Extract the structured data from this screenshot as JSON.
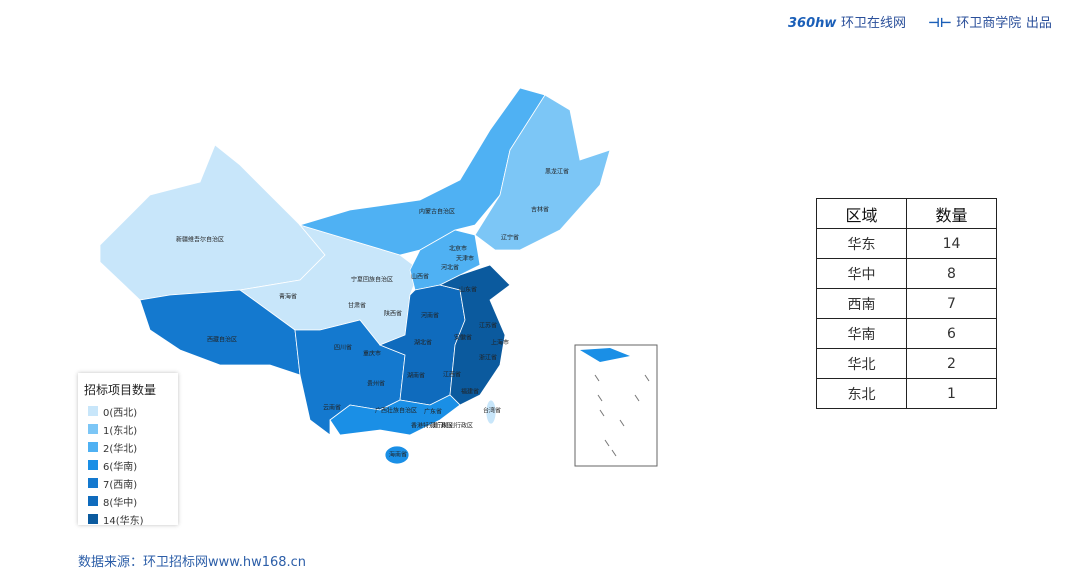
{
  "header": {
    "logo1_mark": "360hw",
    "logo1_text": "环卫在线网",
    "logo2_text": "环卫商学院",
    "credit": "出品"
  },
  "legend": {
    "title": "招标项目数量",
    "items": [
      {
        "label": "0(西北)",
        "color": "#c8e6fa"
      },
      {
        "label": "1(东北)",
        "color": "#7cc6f6"
      },
      {
        "label": "2(华北)",
        "color": "#4fb1f3"
      },
      {
        "label": "6(华南)",
        "color": "#1a8fe6"
      },
      {
        "label": "7(西南)",
        "color": "#1479cf"
      },
      {
        "label": "8(华中)",
        "color": "#0f6bbd"
      },
      {
        "label": "14(华东)",
        "color": "#0b5a9e"
      }
    ]
  },
  "provinces": [
    "新疆维吾尔自治区",
    "青海省",
    "甘肃省",
    "宁夏回族自治区",
    "陕西省",
    "内蒙古自治区",
    "黑龙江省",
    "吉林省",
    "辽宁省",
    "北京市",
    "天津市",
    "河北省",
    "山西省",
    "山东省",
    "河南省",
    "江苏省",
    "安徽省",
    "上海市",
    "湖北省",
    "浙江省",
    "重庆市",
    "四川省",
    "西藏自治区",
    "贵州省",
    "湖南省",
    "江西省",
    "福建省",
    "云南省",
    "广西壮族自治区",
    "广东省",
    "台湾省",
    "香港特别行政区",
    "澳门特别行政区",
    "海南省"
  ],
  "table": {
    "header": [
      "区域",
      "数量"
    ],
    "rows": [
      [
        "华东",
        14
      ],
      [
        "华中",
        8
      ],
      [
        "西南",
        7
      ],
      [
        "华南",
        6
      ],
      [
        "华北",
        2
      ],
      [
        "东北",
        1
      ]
    ]
  },
  "source": "数据来源：环卫招标网www.hw168.cn"
}
